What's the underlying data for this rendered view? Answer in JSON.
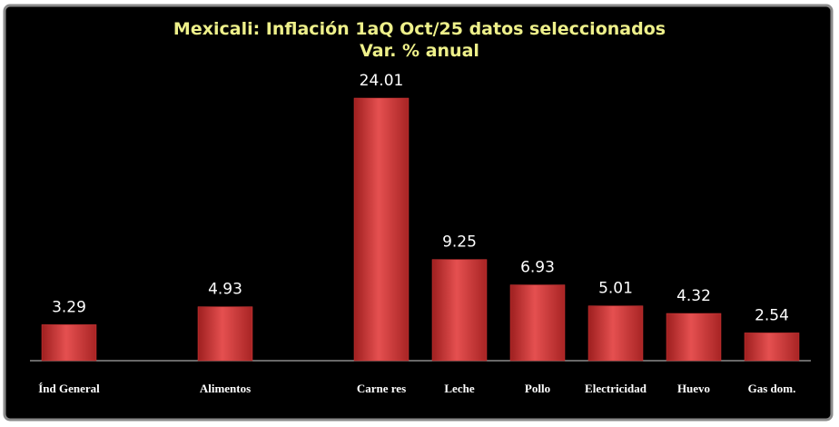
{
  "chart_data": {
    "type": "bar",
    "title": "Mexicali: Inflación 1aQ Oct/25 datos seleccionados",
    "subtitle": "Var. % anual",
    "categories": [
      "Índ General",
      null,
      "Alimentos",
      null,
      "Carne res",
      "Leche",
      "Pollo",
      "Electricidad",
      "Huevo",
      "Gas dom."
    ],
    "values": [
      3.29,
      null,
      4.93,
      null,
      24.01,
      9.25,
      6.93,
      5.01,
      4.32,
      2.54
    ],
    "color": "#d83a3a"
  }
}
